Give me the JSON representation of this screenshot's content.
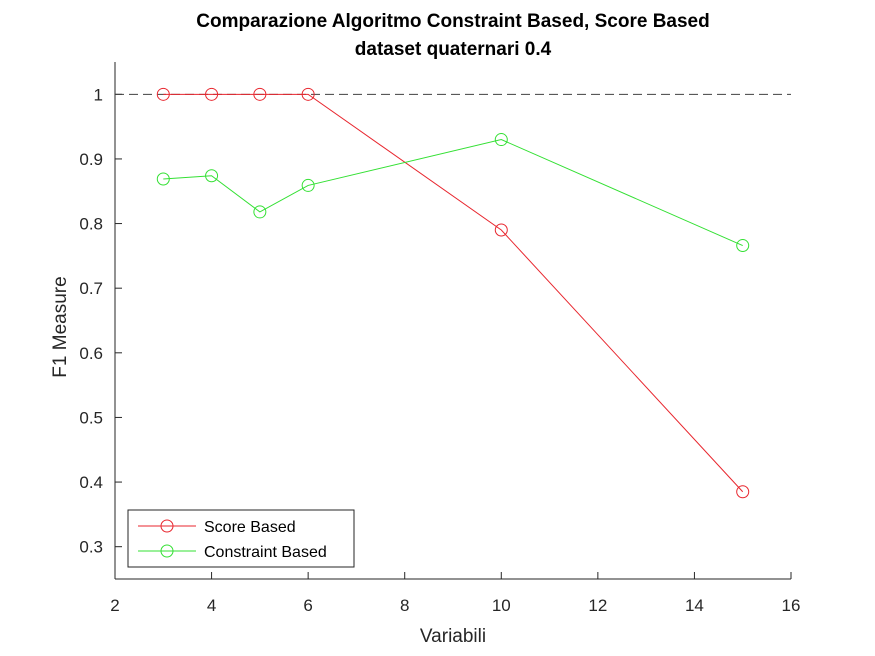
{
  "chart_data": {
    "type": "line",
    "title": "Comparazione Algoritmo Constraint Based, Score Based",
    "subtitle": "dataset quaternari 0.4",
    "xlabel": "Variabili",
    "ylabel": "F1 Measure",
    "xlim": [
      2,
      16
    ],
    "ylim": [
      0.25,
      1.05
    ],
    "xticks": [
      2,
      4,
      6,
      8,
      10,
      12,
      14,
      16
    ],
    "yticks": [
      0.3,
      0.4,
      0.5,
      0.6,
      0.7,
      0.8,
      0.9,
      1
    ],
    "x": [
      3,
      4,
      5,
      6,
      10,
      15
    ],
    "reference_line": {
      "y": 1,
      "style": "dashed",
      "color": "#404040"
    },
    "grid": false,
    "legend_location": "bottom-left",
    "series": [
      {
        "name": "Score Based",
        "color": "#e8262e",
        "marker": "circle",
        "values": [
          1.0,
          1.0,
          1.0,
          1.0,
          0.79,
          0.385
        ]
      },
      {
        "name": "Constraint Based",
        "color": "#33e033",
        "marker": "circle",
        "values": [
          0.869,
          0.874,
          0.818,
          0.859,
          0.93,
          0.766
        ]
      }
    ]
  }
}
